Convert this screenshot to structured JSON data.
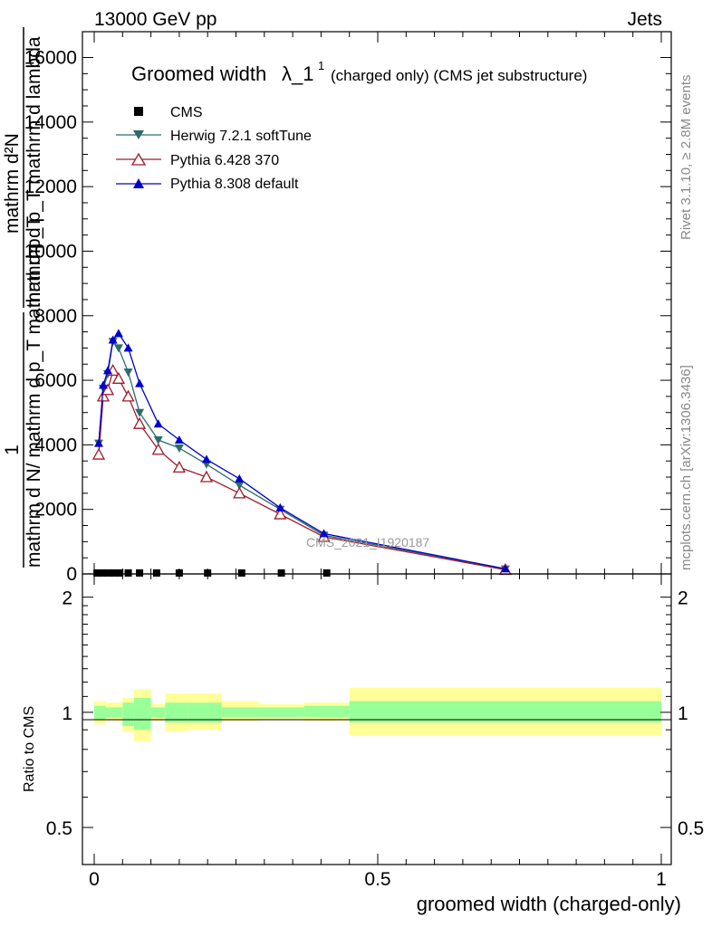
{
  "header": {
    "energy_label": "13000 GeV pp",
    "category_label": "Jets"
  },
  "side_labels": {
    "rivet": "Rivet 3.1.10, ≥ 2.8M events",
    "mcplots": "mcplots.cern.ch [arXiv:1306.3436]"
  },
  "plot_title": {
    "main": "Groomed width",
    "lambda": "λ_1",
    "sup": "1",
    "suffix": "(charged only) (CMS jet substructure)"
  },
  "y_axis_labels": {
    "top_num": "1",
    "top_den": "mathrm d N/ mathrm d p_T mathrm d p_T",
    "top_den_sub": "T",
    "mid_num": "mathrm d²N",
    "mid_den": "mathrm d p_T mathrm d lambda",
    "mid_den_sub": "T"
  },
  "watermark": "CMS_2021_I1920187",
  "ratio_ylabel": "Ratio to CMS",
  "x_label": "groomed width (charged-only)",
  "legend": [
    {
      "name": "CMS",
      "color": "#000000",
      "marker": "square"
    },
    {
      "name": "Herwig 7.2.1 softTune",
      "color": "#2e6b6b",
      "marker": "triangle-down"
    },
    {
      "name": "Pythia 6.428 370",
      "color": "#a01a2a",
      "marker": "triangle-open"
    },
    {
      "name": "Pythia 8.308 default",
      "color": "#0000cc",
      "marker": "triangle-up"
    }
  ],
  "chart_data": [
    {
      "type": "line",
      "title": "Groomed width λ_1¹ (charged only) (CMS jet substructure)",
      "xlim": [
        0,
        1
      ],
      "ylim": [
        0,
        16800
      ],
      "x_ticks": [
        "0",
        "0.5",
        "1"
      ],
      "y_ticks": [
        "0",
        "2000",
        "4000",
        "6000",
        "8000",
        "10000",
        "12000",
        "14000",
        "16000"
      ],
      "series": [
        {
          "name": "CMS",
          "marker": "square",
          "x": [
            0.005,
            0.015,
            0.025,
            0.035,
            0.045,
            0.06,
            0.08,
            0.11,
            0.15,
            0.2,
            0.26,
            0.33,
            0.41
          ],
          "y": [
            30,
            30,
            30,
            30,
            30,
            30,
            30,
            30,
            30,
            30,
            30,
            30,
            30
          ]
        },
        {
          "name": "Herwig 7.2.1 softTune",
          "marker": "triangle-down",
          "x": [
            0.008,
            0.016,
            0.024,
            0.033,
            0.043,
            0.06,
            0.08,
            0.113,
            0.15,
            0.198,
            0.256,
            0.328,
            0.405,
            0.725
          ],
          "y": [
            4050,
            5750,
            6200,
            7200,
            7000,
            6250,
            5000,
            4150,
            3900,
            3400,
            2750,
            2000,
            1200,
            150
          ]
        },
        {
          "name": "Pythia 6.428 370",
          "marker": "triangle-open",
          "x": [
            0.008,
            0.016,
            0.024,
            0.033,
            0.043,
            0.06,
            0.08,
            0.113,
            0.15,
            0.198,
            0.256,
            0.328,
            0.405,
            0.725
          ],
          "y": [
            3700,
            5500,
            5700,
            6300,
            6050,
            5500,
            4650,
            3850,
            3300,
            3000,
            2500,
            1850,
            1150,
            130
          ]
        },
        {
          "name": "Pythia 8.308 default",
          "marker": "triangle-up",
          "x": [
            0.008,
            0.016,
            0.024,
            0.033,
            0.043,
            0.06,
            0.08,
            0.113,
            0.15,
            0.198,
            0.256,
            0.328,
            0.405,
            0.725
          ],
          "y": [
            4050,
            5850,
            6300,
            7250,
            7450,
            7000,
            5900,
            4650,
            4150,
            3550,
            2950,
            2050,
            1250,
            160
          ]
        }
      ]
    },
    {
      "type": "area",
      "ylabel": "Ratio to CMS",
      "xlabel": "groomed width (charged-only)",
      "ylim": [
        0.4,
        2.3
      ],
      "log_y": true,
      "y_ticks": [
        "0.5",
        "1",
        "2"
      ],
      "x_ticks": [
        "0",
        "0.5",
        "1"
      ],
      "bands": [
        {
          "x0": 0.0,
          "x1": 0.02,
          "inner": [
            0.96,
            1.04
          ],
          "outer": [
            0.93,
            1.07
          ]
        },
        {
          "x0": 0.02,
          "x1": 0.05,
          "inner": [
            0.97,
            1.03
          ],
          "outer": [
            0.95,
            1.06
          ]
        },
        {
          "x0": 0.05,
          "x1": 0.07,
          "inner": [
            0.92,
            1.06
          ],
          "outer": [
            0.89,
            1.09
          ]
        },
        {
          "x0": 0.07,
          "x1": 0.1,
          "inner": [
            0.9,
            1.09
          ],
          "outer": [
            0.84,
            1.15
          ]
        },
        {
          "x0": 0.1,
          "x1": 0.125,
          "inner": [
            0.97,
            1.03
          ],
          "outer": [
            0.95,
            1.05
          ]
        },
        {
          "x0": 0.125,
          "x1": 0.165,
          "inner": [
            0.94,
            1.06
          ],
          "outer": [
            0.89,
            1.12
          ]
        },
        {
          "x0": 0.165,
          "x1": 0.225,
          "inner": [
            0.94,
            1.06
          ],
          "outer": [
            0.9,
            1.12
          ]
        },
        {
          "x0": 0.225,
          "x1": 0.29,
          "inner": [
            0.97,
            1.03
          ],
          "outer": [
            0.95,
            1.07
          ]
        },
        {
          "x0": 0.29,
          "x1": 0.37,
          "inner": [
            0.97,
            1.03
          ],
          "outer": [
            0.96,
            1.05
          ]
        },
        {
          "x0": 0.37,
          "x1": 0.45,
          "inner": [
            0.97,
            1.04
          ],
          "outer": [
            0.95,
            1.06
          ]
        },
        {
          "x0": 0.45,
          "x1": 1.0,
          "inner": [
            0.94,
            1.07
          ],
          "outer": [
            0.87,
            1.16
          ]
        }
      ],
      "colors": {
        "inner": "#99ff99",
        "outer": "#ffff99"
      }
    }
  ]
}
